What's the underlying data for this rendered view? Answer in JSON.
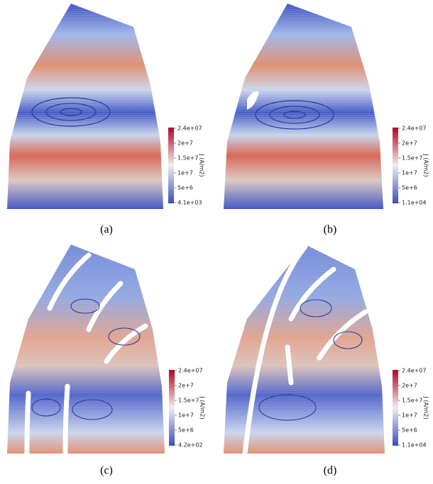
{
  "panels": [
    {
      "caption": "(a)",
      "colorbar": {
        "title": "J (A/m2)",
        "labels": [
          "2.4e+07",
          "2e+7",
          "1.5e+7",
          "1e+7",
          "5e+6",
          "4.1e+03"
        ]
      }
    },
    {
      "caption": "(b)",
      "colorbar": {
        "title": "J (A/m2)",
        "labels": [
          "2.4e+07",
          "2e+7",
          "1.5e+7",
          "1e+7",
          "5e+6",
          "1.1e+04"
        ]
      }
    },
    {
      "caption": "(c)",
      "colorbar": {
        "title": "J (A/m2)",
        "labels": [
          "2.4e+07",
          "2e+7",
          "1.5e+7",
          "1e+7",
          "5e+6",
          "4.2e+02"
        ]
      }
    },
    {
      "caption": "(d)",
      "colorbar": {
        "title": "J (A/m2)",
        "labels": [
          "2.4e+07",
          "2e+7",
          "1.5e+7",
          "1e+7",
          "5e+6",
          "1.1e+04"
        ]
      }
    }
  ]
}
